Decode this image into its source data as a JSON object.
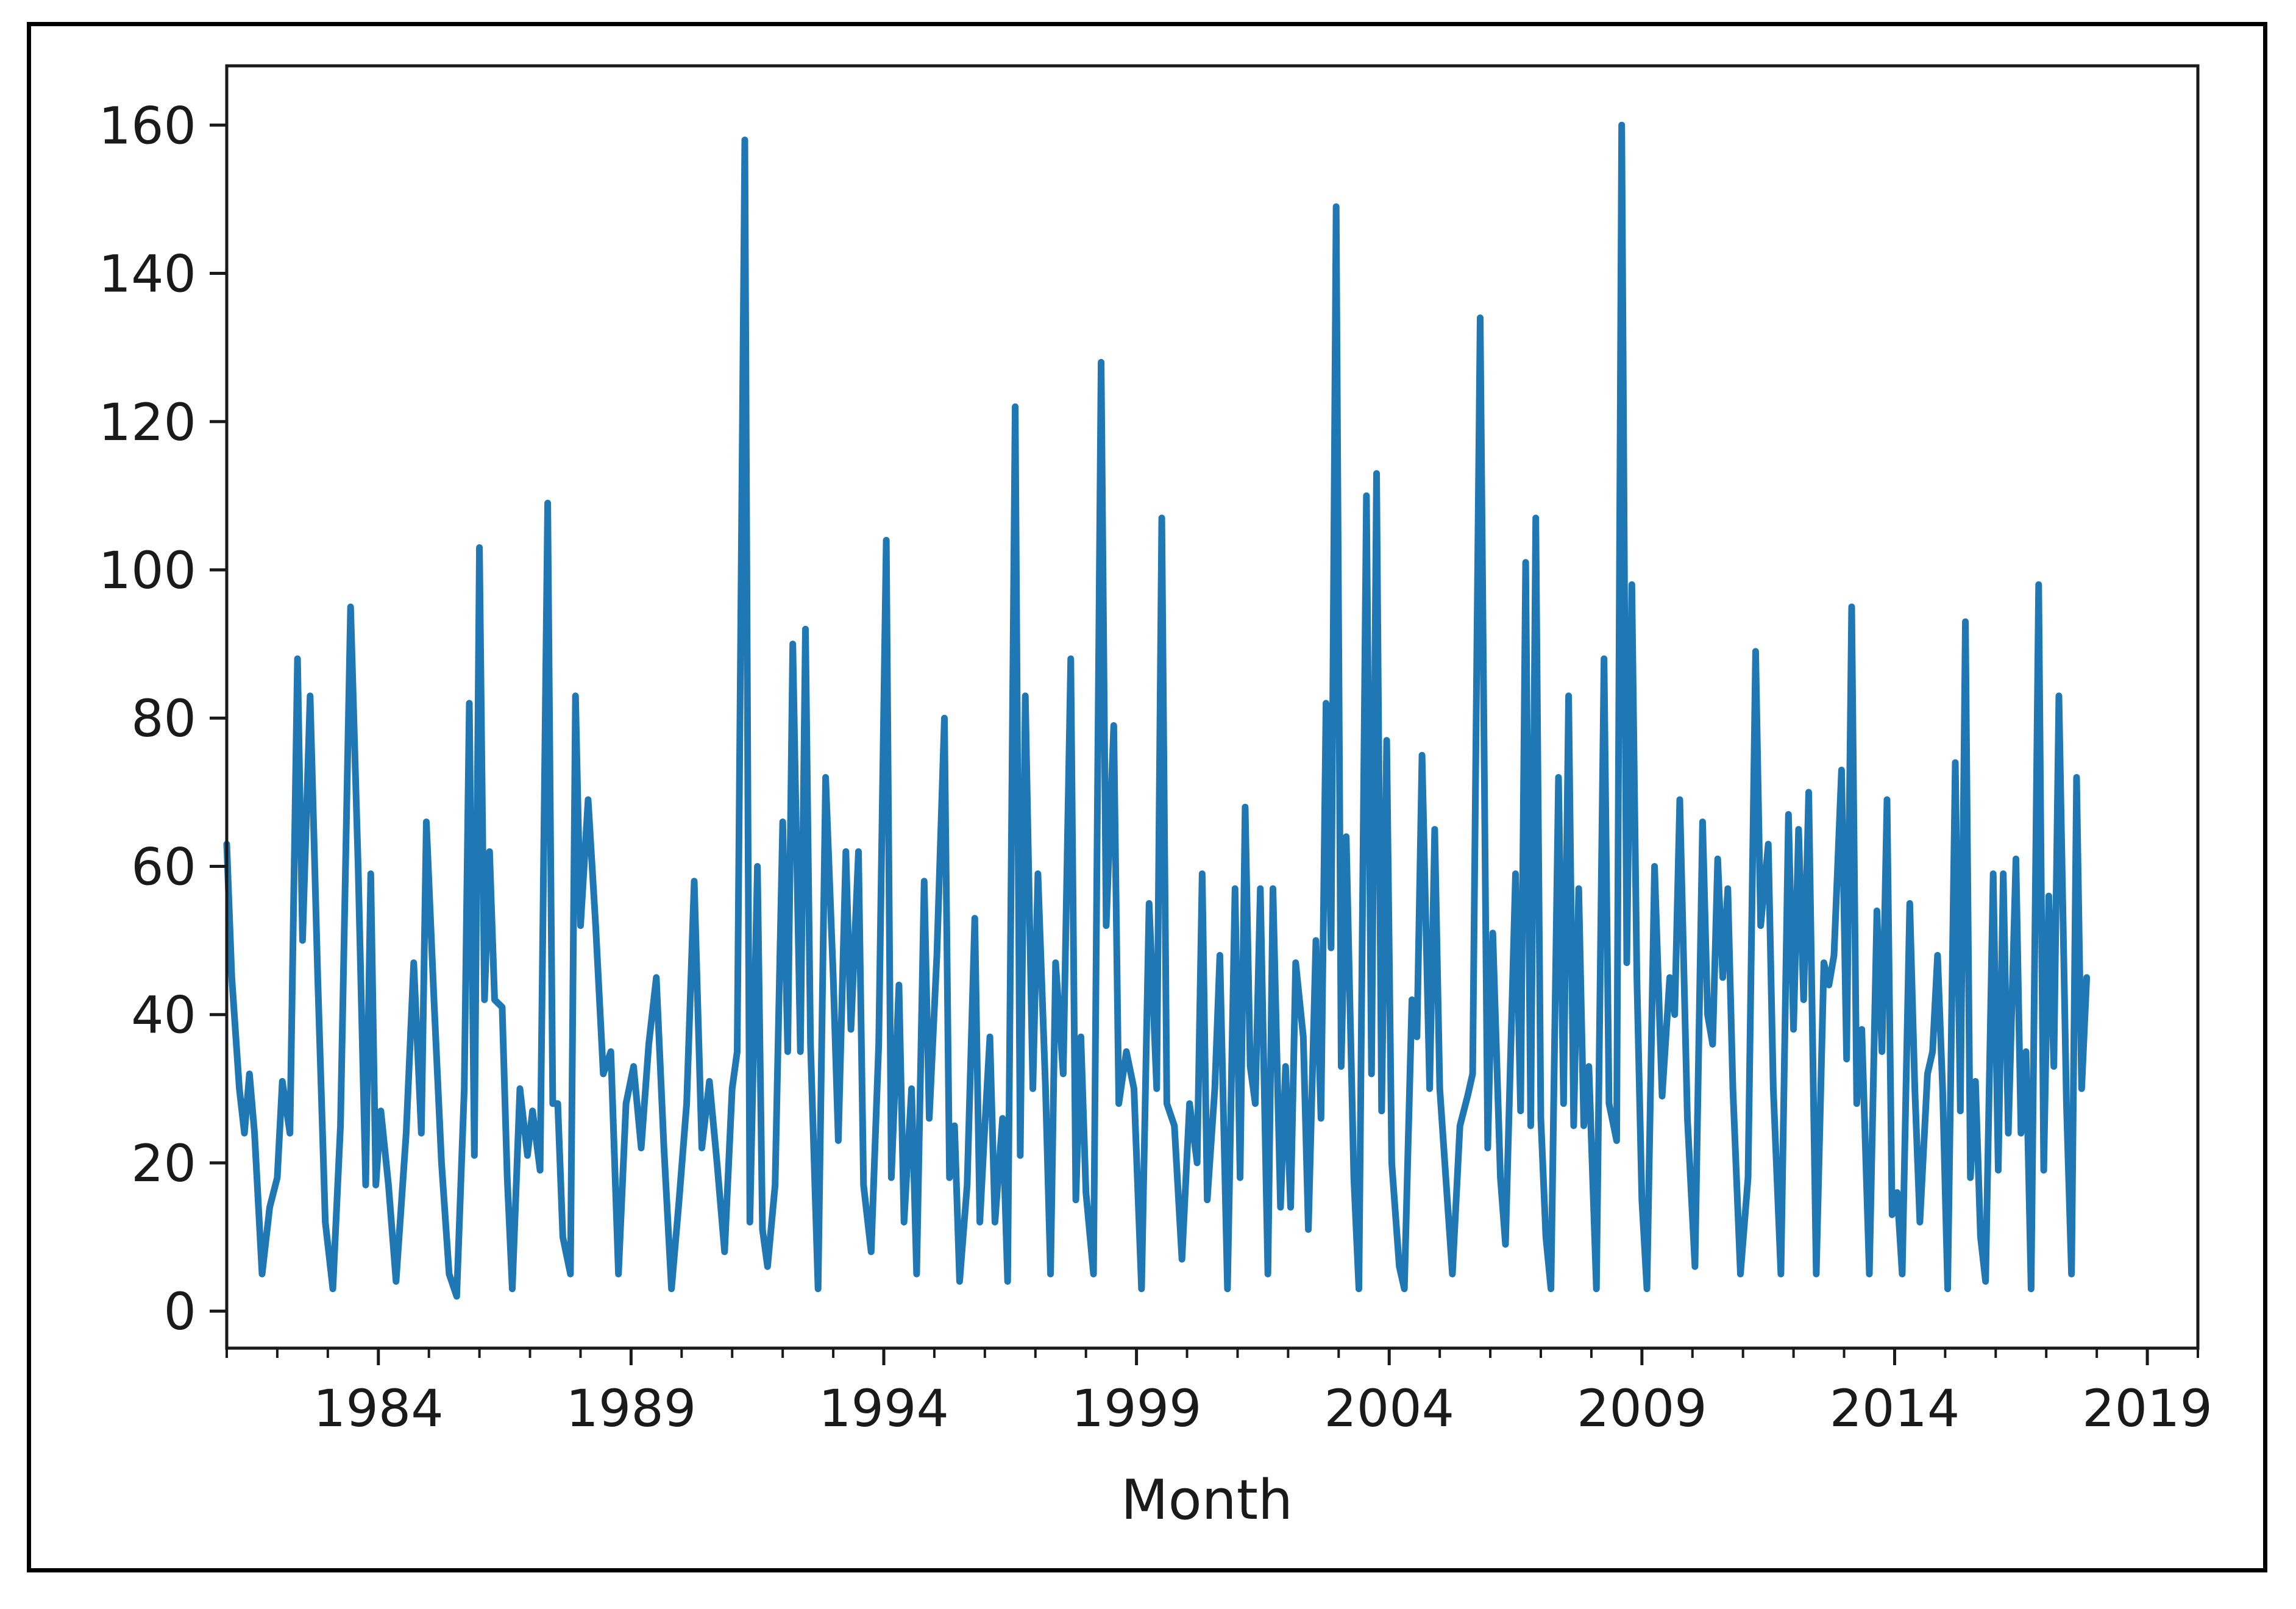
{
  "chart_data": {
    "type": "line",
    "title": "",
    "xlabel": "Month",
    "ylabel": "",
    "grid": false,
    "x_start": "1981-01",
    "x_end": "2020-01",
    "ylim": [
      -5,
      168
    ],
    "yticks": [
      0,
      20,
      40,
      60,
      80,
      100,
      120,
      140,
      160
    ],
    "xticks": [
      {
        "label": "1984",
        "year": 1984
      },
      {
        "label": "1989",
        "year": 1989
      },
      {
        "label": "1994",
        "year": 1994
      },
      {
        "label": "1999",
        "year": 1999
      },
      {
        "label": "2004",
        "year": 2004
      },
      {
        "label": "2009",
        "year": 2009
      },
      {
        "label": "2014",
        "year": 2014
      },
      {
        "label": "2019",
        "year": 2019
      }
    ],
    "series": [
      {
        "color": "#1f77b4",
        "points": [
          [
            1981.0,
            63
          ],
          [
            1981.1,
            45
          ],
          [
            1981.25,
            30
          ],
          [
            1981.35,
            24
          ],
          [
            1981.45,
            32
          ],
          [
            1981.55,
            24
          ],
          [
            1981.7,
            5
          ],
          [
            1981.85,
            14
          ],
          [
            1982.0,
            18
          ],
          [
            1982.1,
            31
          ],
          [
            1982.25,
            24
          ],
          [
            1982.4,
            88
          ],
          [
            1982.5,
            50
          ],
          [
            1982.65,
            83
          ],
          [
            1982.8,
            45
          ],
          [
            1982.95,
            12
          ],
          [
            1983.1,
            3
          ],
          [
            1983.25,
            25
          ],
          [
            1983.45,
            95
          ],
          [
            1983.6,
            60
          ],
          [
            1983.75,
            17
          ],
          [
            1983.85,
            59
          ],
          [
            1983.95,
            17
          ],
          [
            1984.05,
            27
          ],
          [
            1984.2,
            17
          ],
          [
            1984.35,
            4
          ],
          [
            1984.55,
            24
          ],
          [
            1984.7,
            47
          ],
          [
            1984.85,
            24
          ],
          [
            1984.95,
            66
          ],
          [
            1985.1,
            42
          ],
          [
            1985.25,
            20
          ],
          [
            1985.4,
            5
          ],
          [
            1985.55,
            2
          ],
          [
            1985.7,
            30
          ],
          [
            1985.8,
            82
          ],
          [
            1985.9,
            21
          ],
          [
            1986.0,
            103
          ],
          [
            1986.1,
            42
          ],
          [
            1986.2,
            62
          ],
          [
            1986.3,
            42
          ],
          [
            1986.45,
            41
          ],
          [
            1986.55,
            18
          ],
          [
            1986.65,
            3
          ],
          [
            1986.8,
            30
          ],
          [
            1986.95,
            21
          ],
          [
            1987.05,
            27
          ],
          [
            1987.2,
            19
          ],
          [
            1987.35,
            109
          ],
          [
            1987.45,
            28
          ],
          [
            1987.55,
            28
          ],
          [
            1987.65,
            10
          ],
          [
            1987.8,
            5
          ],
          [
            1987.9,
            83
          ],
          [
            1988.0,
            52
          ],
          [
            1988.15,
            69
          ],
          [
            1988.3,
            52
          ],
          [
            1988.45,
            32
          ],
          [
            1988.6,
            35
          ],
          [
            1988.75,
            5
          ],
          [
            1988.9,
            28
          ],
          [
            1989.05,
            33
          ],
          [
            1989.2,
            22
          ],
          [
            1989.35,
            36
          ],
          [
            1989.5,
            45
          ],
          [
            1989.65,
            22
          ],
          [
            1989.8,
            3
          ],
          [
            1989.95,
            15
          ],
          [
            1990.1,
            28
          ],
          [
            1990.25,
            58
          ],
          [
            1990.4,
            22
          ],
          [
            1990.55,
            31
          ],
          [
            1990.7,
            20
          ],
          [
            1990.85,
            8
          ],
          [
            1991.0,
            30
          ],
          [
            1991.1,
            35
          ],
          [
            1991.25,
            158
          ],
          [
            1991.35,
            12
          ],
          [
            1991.5,
            60
          ],
          [
            1991.6,
            11
          ],
          [
            1991.7,
            6
          ],
          [
            1991.85,
            17
          ],
          [
            1992.0,
            66
          ],
          [
            1992.1,
            35
          ],
          [
            1992.2,
            90
          ],
          [
            1992.35,
            35
          ],
          [
            1992.45,
            92
          ],
          [
            1992.55,
            36
          ],
          [
            1992.7,
            3
          ],
          [
            1992.85,
            72
          ],
          [
            1993.0,
            45
          ],
          [
            1993.1,
            23
          ],
          [
            1993.25,
            62
          ],
          [
            1993.35,
            38
          ],
          [
            1993.5,
            62
          ],
          [
            1993.6,
            17
          ],
          [
            1993.75,
            8
          ],
          [
            1993.9,
            36
          ],
          [
            1994.05,
            104
          ],
          [
            1994.15,
            18
          ],
          [
            1994.3,
            44
          ],
          [
            1994.4,
            12
          ],
          [
            1994.55,
            30
          ],
          [
            1994.65,
            5
          ],
          [
            1994.8,
            58
          ],
          [
            1994.9,
            26
          ],
          [
            1995.05,
            48
          ],
          [
            1995.2,
            80
          ],
          [
            1995.3,
            18
          ],
          [
            1995.4,
            25
          ],
          [
            1995.5,
            4
          ],
          [
            1995.65,
            17
          ],
          [
            1995.8,
            53
          ],
          [
            1995.9,
            12
          ],
          [
            1996.0,
            25
          ],
          [
            1996.1,
            37
          ],
          [
            1996.2,
            12
          ],
          [
            1996.35,
            26
          ],
          [
            1996.45,
            4
          ],
          [
            1996.6,
            122
          ],
          [
            1996.7,
            21
          ],
          [
            1996.8,
            83
          ],
          [
            1996.95,
            30
          ],
          [
            1997.05,
            59
          ],
          [
            1997.2,
            30
          ],
          [
            1997.3,
            5
          ],
          [
            1997.4,
            47
          ],
          [
            1997.55,
            32
          ],
          [
            1997.7,
            88
          ],
          [
            1997.8,
            15
          ],
          [
            1997.9,
            37
          ],
          [
            1998.0,
            16
          ],
          [
            1998.15,
            5
          ],
          [
            1998.3,
            128
          ],
          [
            1998.4,
            52
          ],
          [
            1998.55,
            79
          ],
          [
            1998.65,
            28
          ],
          [
            1998.8,
            35
          ],
          [
            1998.95,
            30
          ],
          [
            1999.1,
            3
          ],
          [
            1999.25,
            55
          ],
          [
            1999.4,
            30
          ],
          [
            1999.5,
            107
          ],
          [
            1999.6,
            28
          ],
          [
            1999.75,
            25
          ],
          [
            1999.9,
            7
          ],
          [
            2000.05,
            28
          ],
          [
            2000.2,
            20
          ],
          [
            2000.3,
            59
          ],
          [
            2000.4,
            15
          ],
          [
            2000.55,
            30
          ],
          [
            2000.65,
            48
          ],
          [
            2000.8,
            3
          ],
          [
            2000.95,
            57
          ],
          [
            2001.05,
            18
          ],
          [
            2001.15,
            68
          ],
          [
            2001.25,
            33
          ],
          [
            2001.35,
            28
          ],
          [
            2001.45,
            57
          ],
          [
            2001.6,
            5
          ],
          [
            2001.7,
            57
          ],
          [
            2001.85,
            14
          ],
          [
            2001.95,
            33
          ],
          [
            2002.05,
            14
          ],
          [
            2002.15,
            47
          ],
          [
            2002.3,
            37
          ],
          [
            2002.4,
            11
          ],
          [
            2002.55,
            50
          ],
          [
            2002.65,
            26
          ],
          [
            2002.75,
            82
          ],
          [
            2002.85,
            49
          ],
          [
            2002.95,
            149
          ],
          [
            2003.05,
            33
          ],
          [
            2003.15,
            64
          ],
          [
            2003.3,
            18
          ],
          [
            2003.4,
            3
          ],
          [
            2003.55,
            110
          ],
          [
            2003.65,
            32
          ],
          [
            2003.75,
            113
          ],
          [
            2003.85,
            27
          ],
          [
            2003.95,
            77
          ],
          [
            2004.05,
            20
          ],
          [
            2004.2,
            6
          ],
          [
            2004.3,
            3
          ],
          [
            2004.45,
            42
          ],
          [
            2004.55,
            37
          ],
          [
            2004.65,
            75
          ],
          [
            2004.8,
            30
          ],
          [
            2004.9,
            65
          ],
          [
            2005.0,
            30
          ],
          [
            2005.15,
            15
          ],
          [
            2005.25,
            5
          ],
          [
            2005.4,
            25
          ],
          [
            2005.55,
            29
          ],
          [
            2005.65,
            32
          ],
          [
            2005.8,
            134
          ],
          [
            2005.95,
            22
          ],
          [
            2006.05,
            51
          ],
          [
            2006.2,
            18
          ],
          [
            2006.3,
            9
          ],
          [
            2006.5,
            59
          ],
          [
            2006.6,
            27
          ],
          [
            2006.7,
            101
          ],
          [
            2006.8,
            25
          ],
          [
            2006.9,
            107
          ],
          [
            2007.0,
            26
          ],
          [
            2007.1,
            10
          ],
          [
            2007.2,
            3
          ],
          [
            2007.35,
            72
          ],
          [
            2007.45,
            28
          ],
          [
            2007.55,
            83
          ],
          [
            2007.65,
            25
          ],
          [
            2007.75,
            57
          ],
          [
            2007.85,
            25
          ],
          [
            2007.95,
            33
          ],
          [
            2008.1,
            3
          ],
          [
            2008.25,
            88
          ],
          [
            2008.35,
            28
          ],
          [
            2008.5,
            23
          ],
          [
            2008.6,
            160
          ],
          [
            2008.7,
            47
          ],
          [
            2008.8,
            98
          ],
          [
            2008.9,
            45
          ],
          [
            2009.0,
            15
          ],
          [
            2009.1,
            3
          ],
          [
            2009.25,
            60
          ],
          [
            2009.4,
            29
          ],
          [
            2009.55,
            45
          ],
          [
            2009.65,
            40
          ],
          [
            2009.75,
            69
          ],
          [
            2009.9,
            26
          ],
          [
            2010.05,
            6
          ],
          [
            2010.2,
            66
          ],
          [
            2010.3,
            40
          ],
          [
            2010.4,
            36
          ],
          [
            2010.5,
            61
          ],
          [
            2010.6,
            45
          ],
          [
            2010.7,
            57
          ],
          [
            2010.8,
            30
          ],
          [
            2010.95,
            5
          ],
          [
            2011.1,
            18
          ],
          [
            2011.25,
            89
          ],
          [
            2011.35,
            52
          ],
          [
            2011.5,
            63
          ],
          [
            2011.6,
            30
          ],
          [
            2011.75,
            5
          ],
          [
            2011.9,
            67
          ],
          [
            2012.0,
            38
          ],
          [
            2012.1,
            65
          ],
          [
            2012.2,
            42
          ],
          [
            2012.3,
            70
          ],
          [
            2012.45,
            5
          ],
          [
            2012.6,
            47
          ],
          [
            2012.7,
            44
          ],
          [
            2012.8,
            48
          ],
          [
            2012.95,
            73
          ],
          [
            2013.05,
            34
          ],
          [
            2013.15,
            95
          ],
          [
            2013.25,
            28
          ],
          [
            2013.35,
            38
          ],
          [
            2013.5,
            5
          ],
          [
            2013.65,
            54
          ],
          [
            2013.75,
            35
          ],
          [
            2013.85,
            69
          ],
          [
            2013.95,
            13
          ],
          [
            2014.05,
            16
          ],
          [
            2014.15,
            5
          ],
          [
            2014.3,
            55
          ],
          [
            2014.4,
            30
          ],
          [
            2014.5,
            12
          ],
          [
            2014.65,
            32
          ],
          [
            2014.75,
            35
          ],
          [
            2014.85,
            48
          ],
          [
            2014.95,
            30
          ],
          [
            2015.05,
            3
          ],
          [
            2015.2,
            74
          ],
          [
            2015.3,
            27
          ],
          [
            2015.4,
            93
          ],
          [
            2015.5,
            18
          ],
          [
            2015.6,
            31
          ],
          [
            2015.7,
            10
          ],
          [
            2015.8,
            4
          ],
          [
            2015.95,
            59
          ],
          [
            2016.05,
            19
          ],
          [
            2016.15,
            59
          ],
          [
            2016.25,
            24
          ],
          [
            2016.4,
            61
          ],
          [
            2016.5,
            24
          ],
          [
            2016.6,
            35
          ],
          [
            2016.7,
            3
          ],
          [
            2016.85,
            98
          ],
          [
            2016.95,
            19
          ],
          [
            2017.05,
            56
          ],
          [
            2017.15,
            33
          ],
          [
            2017.25,
            83
          ],
          [
            2017.4,
            28
          ],
          [
            2017.5,
            5
          ],
          [
            2017.6,
            72
          ],
          [
            2017.7,
            30
          ],
          [
            2017.8,
            45
          ]
        ]
      }
    ]
  }
}
